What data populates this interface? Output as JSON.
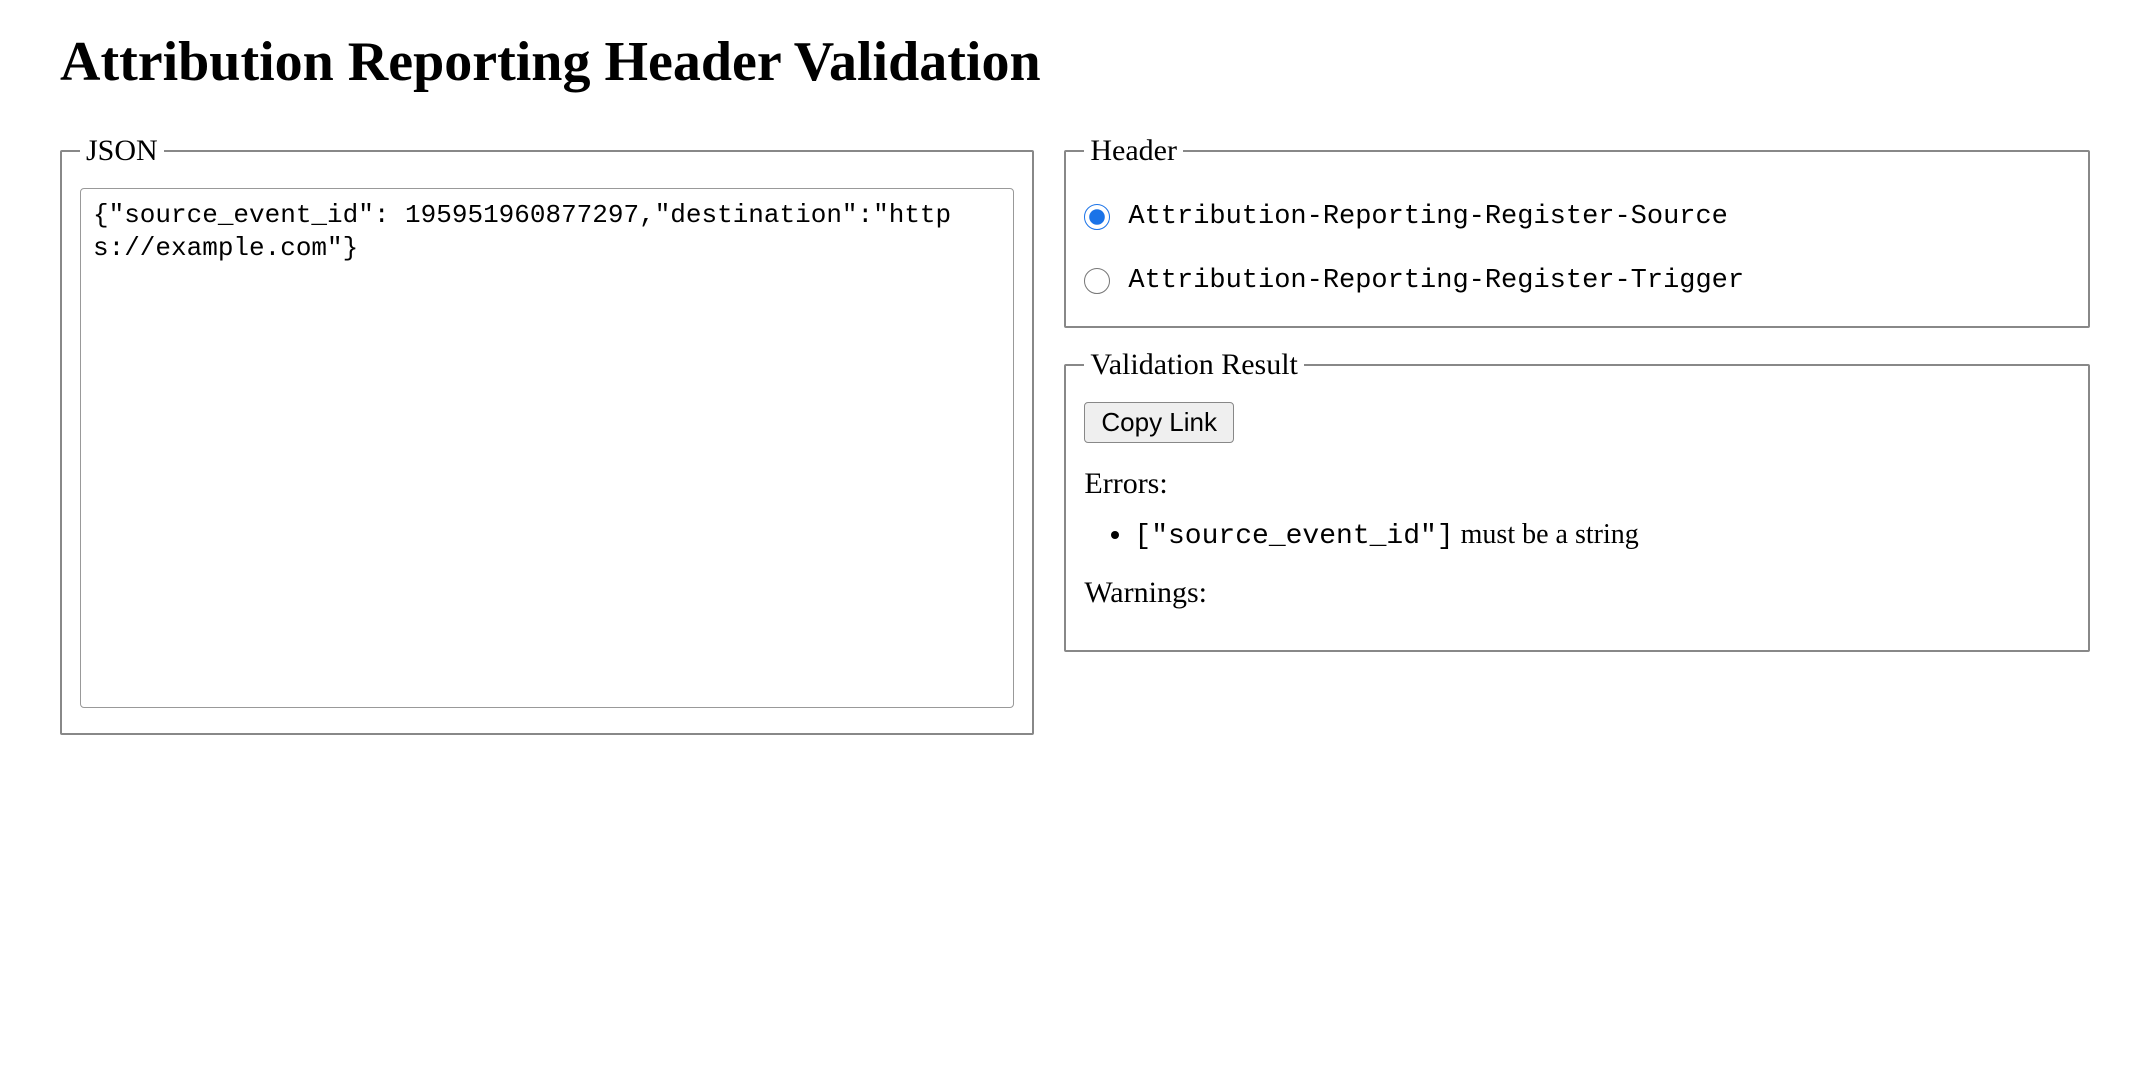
{
  "page": {
    "title": "Attribution Reporting Header Validation"
  },
  "json_panel": {
    "legend": "JSON",
    "value": "{\"source_event_id\": 195951960877297,\"destination\":\"https://example.com\"}"
  },
  "header_panel": {
    "legend": "Header",
    "options": [
      {
        "label": "Attribution-Reporting-Register-Source",
        "checked": true
      },
      {
        "label": "Attribution-Reporting-Register-Trigger",
        "checked": false
      }
    ]
  },
  "result_panel": {
    "legend": "Validation Result",
    "copy_button_label": "Copy Link",
    "errors_label": "Errors:",
    "warnings_label": "Warnings:",
    "errors": [
      {
        "path": "[\"source_event_id\"]",
        "message": "must be a string"
      }
    ],
    "warnings": []
  }
}
